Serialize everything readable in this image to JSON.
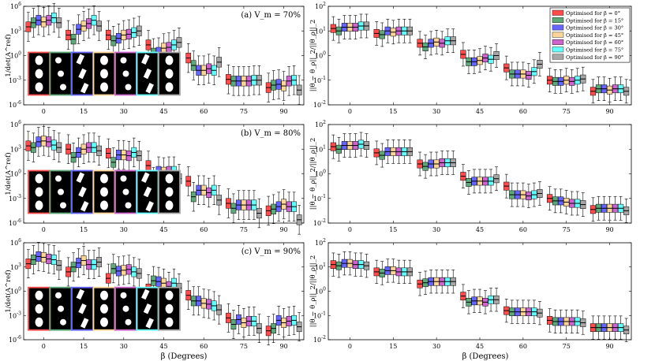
{
  "chart_data": [
    {
      "type": "box",
      "panel": "left-top",
      "title": "(a) V_m = 70%",
      "ylabel": "1/det(A^ref)",
      "yscale": "log",
      "ylim": [
        1e-06,
        1000000.0
      ],
      "yticks": [
        "10^-6",
        "10^-3",
        "10^0",
        "10^3",
        "10^6"
      ],
      "categories": [
        "0",
        "15",
        "30",
        "45",
        "60",
        "75",
        "90"
      ],
      "medians_log10": [
        [
          3.5,
          4.0,
          4.3,
          4.1,
          4.3,
          4.6,
          4.0
        ],
        [
          2.5,
          2.0,
          3.2,
          3.6,
          3.9,
          4.3,
          3.6
        ],
        [
          2.5,
          1.8,
          2.1,
          2.5,
          2.6,
          2.8,
          3.0
        ],
        [
          1.3,
          0.3,
          0.4,
          0.9,
          1.0,
          1.3,
          1.6
        ],
        [
          -0.3,
          -1.2,
          -1.8,
          -1.8,
          -1.6,
          -1.8,
          -0.8
        ],
        [
          -2.9,
          -3.1,
          -3.1,
          -3.1,
          -3.1,
          -3.0,
          -3.0
        ],
        [
          -3.9,
          -3.6,
          -3.5,
          -3.7,
          -3.1,
          -3.0,
          -4.2
        ]
      ],
      "images": [
        "ref-0",
        "ref-15",
        "ref-30",
        "ref-45",
        "ref-60",
        "ref-75",
        "ref-90"
      ]
    },
    {
      "type": "box",
      "panel": "left-middle",
      "title": "(b) V_m = 80%",
      "ylabel": "1/det(A^ref)",
      "yscale": "log",
      "ylim": [
        1e-06,
        1000000.0
      ],
      "yticks": [
        "10^-6",
        "10^-3",
        "10^0",
        "10^3",
        "10^6"
      ],
      "categories": [
        "0",
        "15",
        "30",
        "45",
        "60",
        "75",
        "90"
      ],
      "medians_log10": [
        [
          3.4,
          3.2,
          3.9,
          4.0,
          3.9,
          3.5,
          3.2
        ],
        [
          3.0,
          2.0,
          2.6,
          3.0,
          3.2,
          3.2,
          2.8
        ],
        [
          2.5,
          1.4,
          2.3,
          2.3,
          2.2,
          2.6,
          2.2
        ],
        [
          1.0,
          -1.0,
          0.3,
          0.2,
          0.3,
          0.3,
          -0.6
        ],
        [
          -0.9,
          -2.8,
          -2.0,
          -2.0,
          -2.3,
          -2.0,
          -3.2
        ],
        [
          -3.6,
          -4.2,
          -3.8,
          -3.8,
          -3.8,
          -3.8,
          -4.8
        ],
        [
          -4.5,
          -4.3,
          -4.0,
          -3.7,
          -4.0,
          -4.0,
          -5.6
        ]
      ],
      "images": [
        "ref-0",
        "ref-15",
        "ref-30",
        "ref-45",
        "ref-60",
        "ref-75",
        "ref-90"
      ]
    },
    {
      "type": "box",
      "panel": "left-bottom",
      "title": "(c) V_m = 90%",
      "ylabel": "1/det(A^ref)",
      "yscale": "log",
      "ylim": [
        1e-06,
        1000000.0
      ],
      "yticks": [
        "10^-6",
        "10^-3",
        "10^0",
        "10^3",
        "10^6"
      ],
      "categories": [
        "0",
        "15",
        "30",
        "45",
        "60",
        "75",
        "90"
      ],
      "medians_log10": [
        [
          3.4,
          3.9,
          4.3,
          4.2,
          4.0,
          3.9,
          3.2
        ],
        [
          2.4,
          3.0,
          3.5,
          3.8,
          3.3,
          3.3,
          3.6
        ],
        [
          1.6,
          2.8,
          2.5,
          2.6,
          2.7,
          2.4,
          2.2
        ],
        [
          0.3,
          1.3,
          1.2,
          1.0,
          0.6,
          1.0,
          0.4
        ],
        [
          -0.5,
          -1.2,
          -1.2,
          -1.5,
          -1.6,
          -1.8,
          -2.3
        ],
        [
          -3.3,
          -4.1,
          -3.5,
          -3.9,
          -3.7,
          -3.7,
          -4.6
        ],
        [
          -4.9,
          -4.6,
          -3.6,
          -3.9,
          -3.7,
          -3.6,
          -4.4
        ]
      ],
      "images": [
        "ref-0",
        "ref-15",
        "ref-30",
        "ref-45",
        "ref-60",
        "ref-75",
        "ref-90"
      ]
    },
    {
      "type": "box",
      "panel": "right-top",
      "ylabel": "||θ − θ_ρ||_2/||θ_ρ||_2",
      "yscale": "log",
      "ylim": [
        0.01,
        100.0
      ],
      "yticks": [
        "10^-2",
        "10^-1",
        "10^0",
        "10^1",
        "10^2"
      ],
      "categories": [
        "0",
        "15",
        "30",
        "45",
        "60",
        "75",
        "90"
      ],
      "medians_log10": [
        [
          1.1,
          1.0,
          1.15,
          1.15,
          1.15,
          1.2,
          1.2
        ],
        [
          0.9,
          0.85,
          1.0,
          0.95,
          1.0,
          1.0,
          1.0
        ],
        [
          0.5,
          0.35,
          0.5,
          0.55,
          0.5,
          0.6,
          0.6
        ],
        [
          0.05,
          -0.25,
          -0.25,
          -0.2,
          -0.1,
          -0.15,
          0.0
        ],
        [
          -0.5,
          -0.75,
          -0.75,
          -0.75,
          -0.8,
          -0.65,
          -0.35
        ],
        [
          -1.0,
          -1.05,
          -1.05,
          -1.0,
          -1.05,
          -1.0,
          -0.95
        ],
        [
          -1.45,
          -1.35,
          -1.35,
          -1.4,
          -1.35,
          -1.35,
          -1.45
        ]
      ],
      "legend": {
        "placement": "top-right",
        "entries": [
          {
            "label": "Optimised for β = 0°",
            "color": "#ff4d4d"
          },
          {
            "label": "Optimised for β = 15°",
            "color": "#5fa87a"
          },
          {
            "label": "Optimised for β = 30°",
            "color": "#6666ff"
          },
          {
            "label": "Optimised for β = 45°",
            "color": "#ffd699"
          },
          {
            "label": "Optimised for β = 60°",
            "color": "#cc66cc"
          },
          {
            "label": "Optimised for β = 75°",
            "color": "#66ffff"
          },
          {
            "label": "Optimised for β = 90°",
            "color": "#a6a6a6"
          }
        ]
      }
    },
    {
      "type": "box",
      "panel": "right-middle",
      "ylabel": "||θ − θ_ρ||_2/||θ_ρ||_2",
      "yscale": "log",
      "ylim": [
        0.01,
        100.0
      ],
      "yticks": [
        "10^-2",
        "10^-1",
        "10^0",
        "10^1",
        "10^2"
      ],
      "categories": [
        "0",
        "15",
        "30",
        "45",
        "60",
        "75",
        "90"
      ],
      "medians_log10": [
        [
          1.1,
          1.0,
          1.15,
          1.15,
          1.15,
          1.2,
          1.15
        ],
        [
          0.85,
          0.75,
          0.9,
          0.9,
          0.9,
          0.9,
          0.9
        ],
        [
          0.4,
          0.3,
          0.4,
          0.4,
          0.45,
          0.45,
          0.45
        ],
        [
          -0.1,
          -0.35,
          -0.3,
          -0.3,
          -0.3,
          -0.3,
          -0.2
        ],
        [
          -0.5,
          -0.85,
          -0.85,
          -0.85,
          -0.9,
          -0.85,
          -0.8
        ],
        [
          -1.0,
          -1.1,
          -1.1,
          -1.15,
          -1.2,
          -1.2,
          -1.25
        ],
        [
          -1.45,
          -1.4,
          -1.4,
          -1.4,
          -1.4,
          -1.4,
          -1.5
        ]
      ]
    },
    {
      "type": "box",
      "panel": "right-bottom",
      "ylabel": "||θ − θ_ρ||_2/||θ_ρ||_2",
      "yscale": "log",
      "ylim": [
        0.01,
        100.0
      ],
      "yticks": [
        "10^-2",
        "10^-1",
        "10^0",
        "10^1",
        "10^2"
      ],
      "categories": [
        "0",
        "15",
        "30",
        "45",
        "60",
        "75",
        "90"
      ],
      "medians_log10": [
        [
          1.1,
          1.05,
          1.15,
          1.15,
          1.1,
          1.1,
          1.05
        ],
        [
          0.8,
          0.75,
          0.85,
          0.85,
          0.8,
          0.8,
          0.8
        ],
        [
          0.3,
          0.35,
          0.4,
          0.4,
          0.4,
          0.4,
          0.4
        ],
        [
          -0.2,
          -0.45,
          -0.4,
          -0.4,
          -0.45,
          -0.35,
          -0.35
        ],
        [
          -0.8,
          -0.85,
          -0.85,
          -0.85,
          -0.85,
          -0.85,
          -0.9
        ],
        [
          -1.2,
          -1.25,
          -1.25,
          -1.25,
          -1.25,
          -1.25,
          -1.3
        ],
        [
          -1.5,
          -1.5,
          -1.5,
          -1.5,
          -1.5,
          -1.5,
          -1.6
        ]
      ]
    }
  ],
  "xlabel": "β (Degrees)",
  "colors": [
    "#ff4d4d",
    "#5fa87a",
    "#6666ff",
    "#ffd699",
    "#cc66cc",
    "#66ffff",
    "#a6a6a6"
  ]
}
